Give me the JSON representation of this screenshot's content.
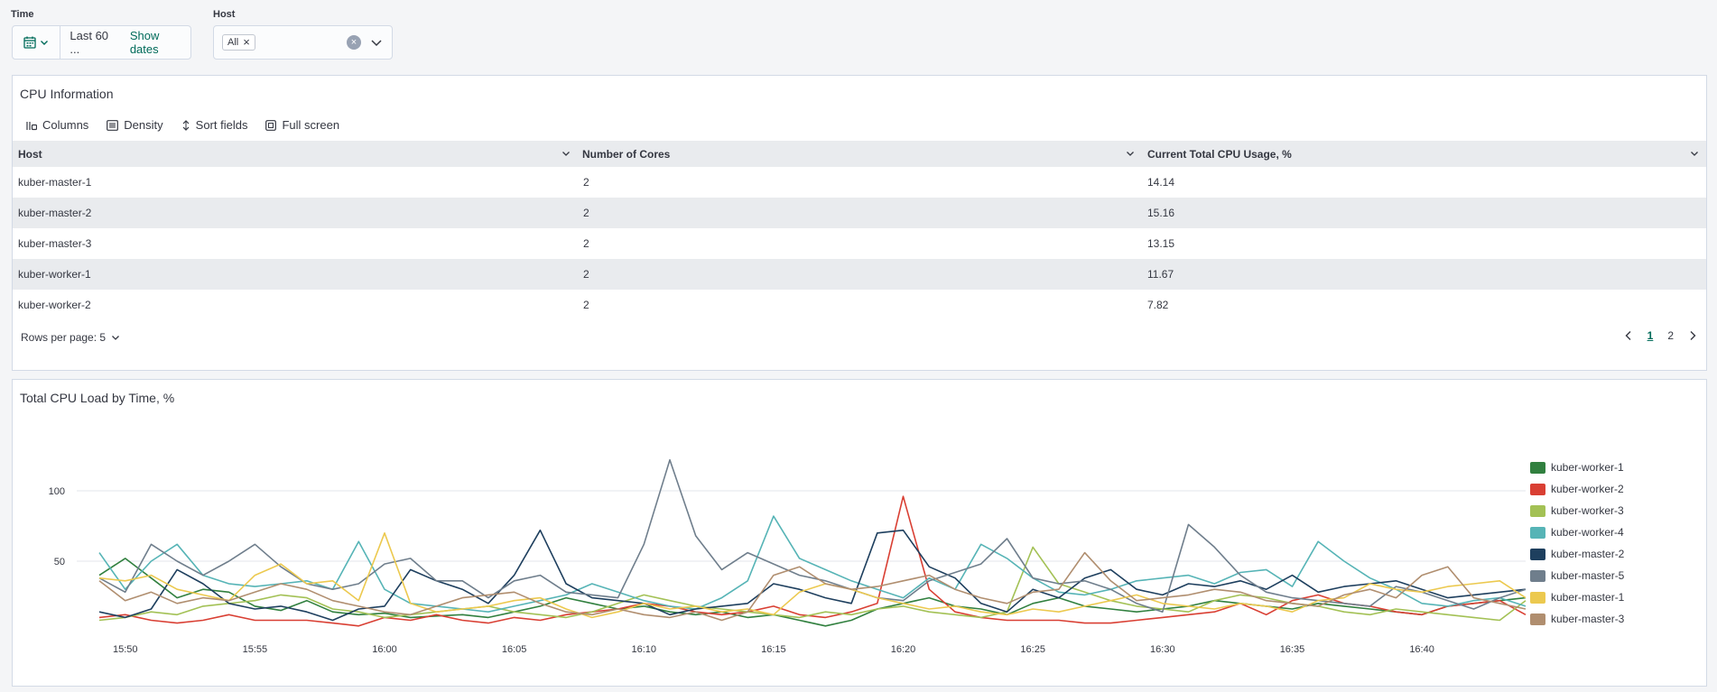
{
  "filters": {
    "time_label": "Time",
    "time_value": "Last 60 ...",
    "show_dates": "Show dates",
    "host_label": "Host",
    "host_chip": "All"
  },
  "cpu_table": {
    "title": "CPU Information",
    "toolbar": {
      "columns": "Columns",
      "density": "Density",
      "sort": "Sort fields",
      "fullscreen": "Full screen"
    },
    "headers": [
      "Host",
      "Number of Cores",
      "Current Total CPU Usage, %"
    ],
    "rows": [
      [
        "kuber-master-1",
        "2",
        "14.14"
      ],
      [
        "kuber-master-2",
        "2",
        "15.16"
      ],
      [
        "kuber-master-3",
        "2",
        "13.15"
      ],
      [
        "kuber-worker-1",
        "2",
        "11.67"
      ],
      [
        "kuber-worker-2",
        "2",
        "7.82"
      ]
    ],
    "rows_per_page": "Rows per page: 5",
    "pages": [
      "1",
      "2"
    ],
    "active_page": "1"
  },
  "chart_panel": {
    "title": "Total CPU Load by Time, %"
  },
  "chart_data": {
    "type": "line",
    "title": "Total CPU Load by Time, %",
    "x_ticks": [
      "15:50",
      "15:55",
      "16:00",
      "16:05",
      "16:10",
      "16:15",
      "16:20",
      "16:25",
      "16:30",
      "16:35",
      "16:40"
    ],
    "x_range": [
      "15:49",
      "16:44"
    ],
    "y_ticks": [
      50,
      100
    ],
    "y_range": [
      0,
      125
    ],
    "grid": "horizontal",
    "legend_position": "right",
    "x": [
      "15:49",
      "15:50",
      "15:51",
      "15:52",
      "15:53",
      "15:54",
      "15:55",
      "15:56",
      "15:57",
      "15:58",
      "15:59",
      "16:00",
      "16:01",
      "16:02",
      "16:03",
      "16:04",
      "16:05",
      "16:06",
      "16:07",
      "16:08",
      "16:09",
      "16:10",
      "16:11",
      "16:12",
      "16:13",
      "16:14",
      "16:15",
      "16:16",
      "16:17",
      "16:18",
      "16:19",
      "16:20",
      "16:21",
      "16:22",
      "16:23",
      "16:24",
      "16:25",
      "16:26",
      "16:27",
      "16:28",
      "16:29",
      "16:30",
      "16:31",
      "16:32",
      "16:33",
      "16:34",
      "16:35",
      "16:36",
      "16:37",
      "16:38",
      "16:39",
      "16:40",
      "16:41",
      "16:42",
      "16:43",
      "16:44"
    ],
    "series": [
      {
        "name": "kuber-worker-1",
        "color": "#31803f",
        "values": [
          40,
          52,
          38,
          24,
          30,
          28,
          18,
          15,
          22,
          14,
          12,
          13,
          10,
          11,
          12,
          10,
          14,
          18,
          24,
          20,
          16,
          18,
          14,
          12,
          14,
          10,
          12,
          8,
          4,
          8,
          16,
          20,
          24,
          18,
          16,
          12,
          20,
          24,
          18,
          16,
          14,
          16,
          18,
          22,
          20,
          18,
          16,
          20,
          18,
          16,
          14,
          12,
          18,
          20,
          22,
          24
        ]
      },
      {
        "name": "kuber-worker-2",
        "color": "#d93f33",
        "values": [
          10,
          12,
          8,
          6,
          8,
          12,
          8,
          8,
          8,
          6,
          4,
          10,
          8,
          12,
          8,
          6,
          10,
          8,
          12,
          14,
          16,
          20,
          18,
          14,
          12,
          14,
          18,
          12,
          10,
          14,
          20,
          96,
          30,
          14,
          10,
          8,
          8,
          8,
          6,
          6,
          8,
          10,
          12,
          14,
          20,
          12,
          22,
          26,
          20,
          18,
          14,
          12,
          18,
          20,
          22,
          12
        ]
      },
      {
        "name": "kuber-worker-3",
        "color": "#a3c155",
        "values": [
          8,
          10,
          14,
          12,
          18,
          20,
          22,
          26,
          24,
          16,
          14,
          10,
          12,
          14,
          16,
          18,
          14,
          12,
          10,
          14,
          20,
          26,
          22,
          18,
          16,
          14,
          12,
          10,
          14,
          12,
          16,
          18,
          14,
          12,
          10,
          14,
          60,
          34,
          28,
          22,
          18,
          16,
          14,
          22,
          26,
          24,
          20,
          18,
          14,
          12,
          16,
          14,
          12,
          10,
          8,
          22
        ]
      },
      {
        "name": "kuber-worker-4",
        "color": "#56b4b6",
        "values": [
          56,
          30,
          50,
          62,
          40,
          34,
          32,
          34,
          36,
          30,
          64,
          30,
          20,
          18,
          16,
          14,
          18,
          22,
          26,
          34,
          28,
          22,
          18,
          16,
          24,
          36,
          82,
          52,
          44,
          36,
          30,
          24,
          38,
          30,
          62,
          52,
          38,
          28,
          26,
          30,
          36,
          38,
          40,
          34,
          42,
          44,
          32,
          64,
          50,
          38,
          30,
          20,
          18,
          22,
          24,
          18
        ]
      },
      {
        "name": "kuber-master-2",
        "color": "#1e3f5e",
        "values": [
          14,
          10,
          16,
          44,
          34,
          20,
          16,
          18,
          14,
          8,
          16,
          18,
          44,
          36,
          30,
          20,
          40,
          72,
          34,
          24,
          22,
          20,
          12,
          16,
          18,
          20,
          34,
          30,
          24,
          20,
          70,
          72,
          46,
          38,
          20,
          14,
          30,
          24,
          38,
          44,
          30,
          26,
          34,
          32,
          36,
          30,
          40,
          28,
          32,
          34,
          36,
          30,
          24,
          26,
          28,
          30
        ]
      },
      {
        "name": "kuber-master-5",
        "color": "#6f7e8c",
        "values": [
          38,
          28,
          62,
          50,
          40,
          50,
          62,
          46,
          34,
          30,
          34,
          48,
          52,
          36,
          36,
          24,
          36,
          40,
          28,
          26,
          24,
          62,
          122,
          68,
          44,
          56,
          48,
          40,
          36,
          30,
          24,
          22,
          36,
          42,
          48,
          66,
          38,
          34,
          36,
          30,
          20,
          14,
          76,
          60,
          40,
          28,
          24,
          22,
          20,
          18,
          32,
          28,
          22,
          16,
          24,
          30
        ]
      },
      {
        "name": "kuber-master-1",
        "color": "#ecc94f",
        "values": [
          38,
          36,
          40,
          30,
          26,
          22,
          40,
          48,
          34,
          36,
          22,
          70,
          20,
          14,
          16,
          18,
          22,
          24,
          16,
          10,
          14,
          20,
          16,
          18,
          14,
          16,
          12,
          28,
          34,
          30,
          24,
          20,
          16,
          18,
          14,
          12,
          16,
          14,
          18,
          22,
          26,
          20,
          18,
          16,
          20,
          18,
          14,
          22,
          24,
          34,
          30,
          28,
          32,
          34,
          36,
          24
        ]
      },
      {
        "name": "kuber-master-3",
        "color": "#b08e6f",
        "values": [
          36,
          22,
          28,
          20,
          24,
          22,
          28,
          34,
          30,
          22,
          18,
          14,
          12,
          18,
          24,
          26,
          28,
          20,
          14,
          12,
          16,
          12,
          10,
          14,
          8,
          14,
          40,
          46,
          34,
          30,
          32,
          36,
          40,
          30,
          24,
          20,
          28,
          30,
          56,
          36,
          22,
          24,
          26,
          30,
          28,
          22,
          20,
          18,
          26,
          30,
          24,
          40,
          46,
          24,
          20,
          16
        ]
      }
    ]
  }
}
